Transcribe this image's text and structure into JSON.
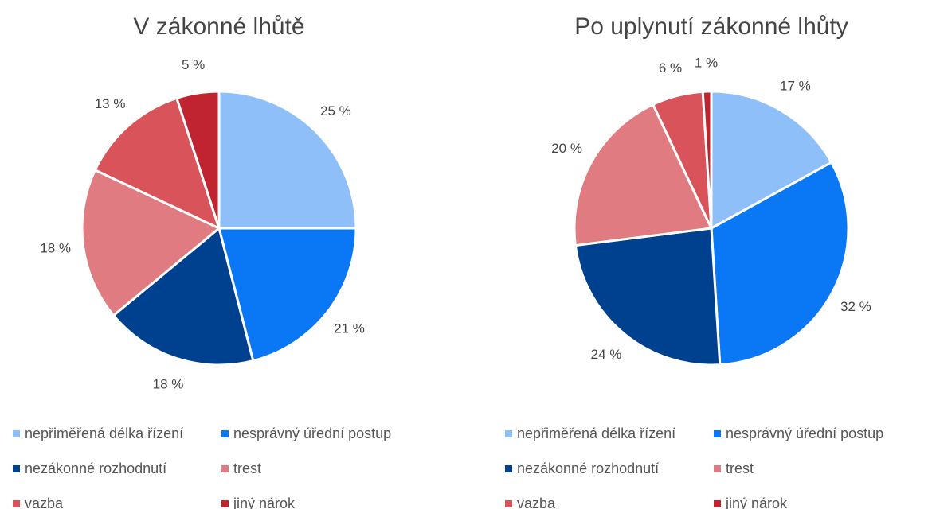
{
  "chart_data": [
    {
      "type": "pie",
      "title": "V zákonné lhůtě",
      "categories": [
        "nepřiměřená délka řízení",
        "nesprávný úřední postup",
        "nezákonné rozhodnutí",
        "trest",
        "vazba",
        "jiný nárok"
      ],
      "values": [
        25,
        21,
        18,
        18,
        13,
        5
      ],
      "value_labels": [
        "25 %",
        "21 %",
        "18 %",
        "18 %",
        "13 %",
        "5 %"
      ],
      "colors": [
        "#8fbff9",
        "#0a78f5",
        "#00418f",
        "#e07b81",
        "#d9535b",
        "#bf2430"
      ],
      "legend": "bottom"
    },
    {
      "type": "pie",
      "title": "Po uplynutí zákonné lhůty",
      "categories": [
        "nepřiměřená délka řízení",
        "nesprávný úřední postup",
        "nezákonné rozhodnutí",
        "trest",
        "vazba",
        "jiný nárok"
      ],
      "values": [
        17,
        32,
        24,
        20,
        6,
        1
      ],
      "value_labels": [
        "17 %",
        "32 %",
        "24 %",
        "20 %",
        "6 %",
        "1 %"
      ],
      "colors": [
        "#8fbff9",
        "#0a78f5",
        "#00418f",
        "#e07b81",
        "#d9535b",
        "#bf2430"
      ],
      "legend": "bottom"
    }
  ]
}
